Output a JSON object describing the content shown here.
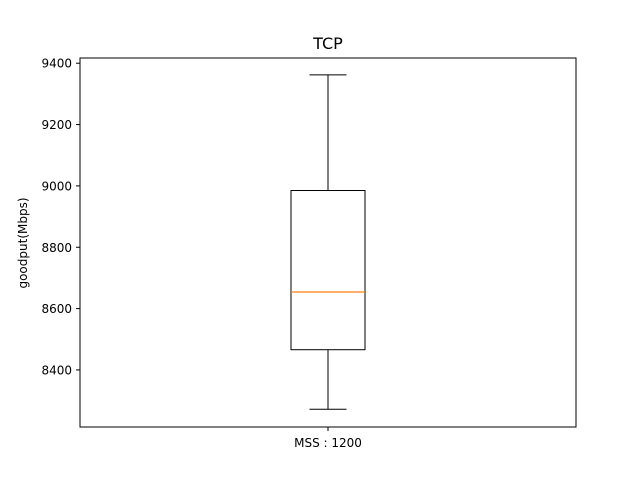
{
  "chart_data": {
    "type": "boxplot",
    "title": "TCP",
    "xlabel": "",
    "ylabel": "goodput(Mbps)",
    "categories": [
      "MSS : 1200"
    ],
    "series": [
      {
        "category": "MSS : 1200",
        "whisker_low": 8272,
        "q1": 8466,
        "median": 8654,
        "q3": 8985,
        "whisker_high": 9362
      }
    ],
    "yticks": [
      8400,
      8600,
      8800,
      9000,
      9200,
      9400
    ],
    "ylim": [
      8214,
      9417
    ],
    "grid": false,
    "colors": {
      "box": "#000000",
      "median": "#ff7f0e",
      "axes": "#000000",
      "background": "#ffffff"
    }
  }
}
